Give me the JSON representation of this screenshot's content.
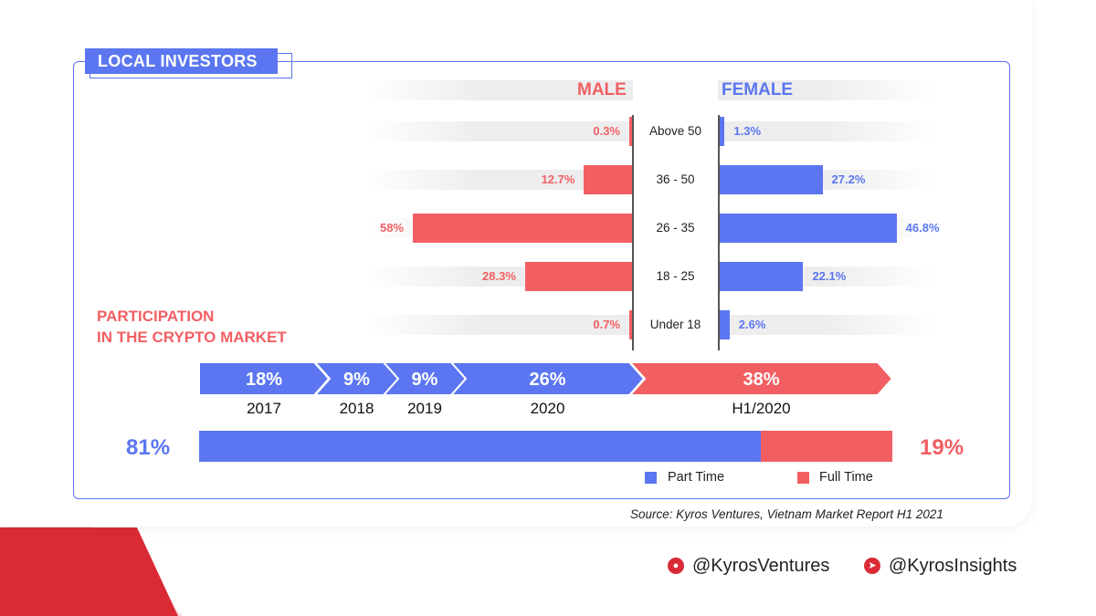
{
  "section_tag": "LOCAL INVESTORS",
  "headers": {
    "male": "MALE",
    "female": "FEMALE"
  },
  "participation_title_line1": "PARTICIPATION",
  "participation_title_line2": "IN THE CRYPTO MARKET",
  "colors": {
    "male": "#f25f63",
    "female": "#5b76f0",
    "part_time": "#5b76f0",
    "full_time": "#f25f63"
  },
  "chart_data": [
    {
      "type": "bar",
      "orientation": "horizontal-diverging",
      "categories": [
        "Above 50",
        "36 - 50",
        "26 - 35",
        "18 - 25",
        "Under 18"
      ],
      "series": [
        {
          "name": "MALE",
          "values": [
            0.3,
            12.7,
            58,
            28.3,
            0.7
          ],
          "labels": [
            "0.3%",
            "12.7%",
            "58%",
            "28.3%",
            "0.7%"
          ]
        },
        {
          "name": "FEMALE",
          "values": [
            1.3,
            27.2,
            46.8,
            22.1,
            2.6
          ],
          "labels": [
            "1.3%",
            "27.2%",
            "46.8%",
            "22.1%",
            "2.6%"
          ]
        }
      ]
    },
    {
      "type": "bar",
      "orientation": "arrow-sequence",
      "categories": [
        "2017",
        "2018",
        "2019",
        "2020",
        "H1/2020"
      ],
      "values": [
        18,
        9,
        9,
        26,
        38
      ],
      "labels": [
        "18%",
        "9%",
        "9%",
        "26%",
        "38%"
      ]
    },
    {
      "type": "bar",
      "orientation": "stacked-100",
      "series": [
        {
          "name": "Part Time",
          "values": [
            81
          ],
          "label": "81%"
        },
        {
          "name": "Full Time",
          "values": [
            19
          ],
          "label": "19%"
        }
      ]
    }
  ],
  "legend": {
    "part_time": "Part Time",
    "full_time": "Full Time"
  },
  "source": "Source: Kyros Ventures, Vietnam Market Report H1 2021",
  "social": {
    "twitter": "@KyrosVentures",
    "telegram": "@KyrosInsights",
    "twitter_icon": "twitter-icon",
    "telegram_icon": "telegram-icon"
  }
}
